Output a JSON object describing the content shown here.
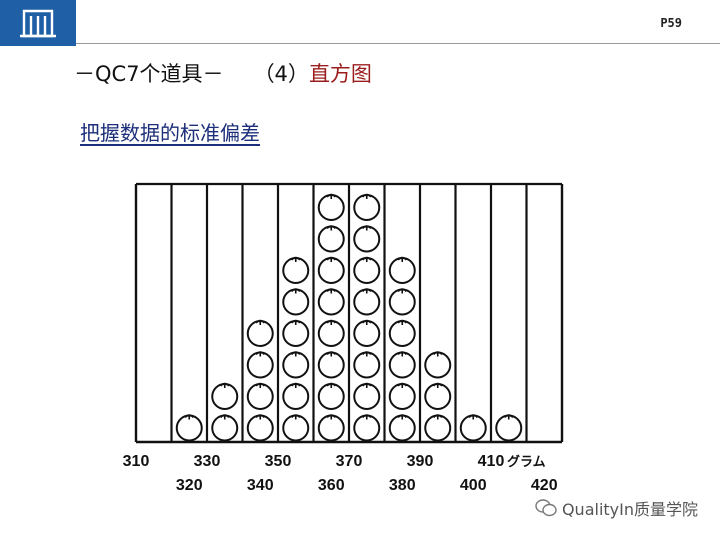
{
  "header": {
    "page_number": "P59",
    "logo": "building-logo"
  },
  "title": {
    "prefix": "－QC7个道具－",
    "number": "（4）",
    "topic": "直方图"
  },
  "subtitle": "把握数据的标准偏差",
  "diagram": {
    "columns": [
      {
        "label": "310",
        "count": 0
      },
      {
        "label": "320",
        "count": 1
      },
      {
        "label": "330",
        "count": 2
      },
      {
        "label": "340",
        "count": 4
      },
      {
        "label": "350",
        "count": 6
      },
      {
        "label": "360",
        "count": 8
      },
      {
        "label": "370",
        "count": 8
      },
      {
        "label": "380",
        "count": 6
      },
      {
        "label": "390",
        "count": 3
      },
      {
        "label": "400",
        "count": 1
      },
      {
        "label": "410",
        "count": 1
      },
      {
        "label": "420",
        "count": 0
      }
    ],
    "unit": "グラム",
    "item_icon": "apple-icon"
  },
  "watermark": {
    "text": "QualityIn质量学院",
    "icon": "wechat-icon"
  }
}
